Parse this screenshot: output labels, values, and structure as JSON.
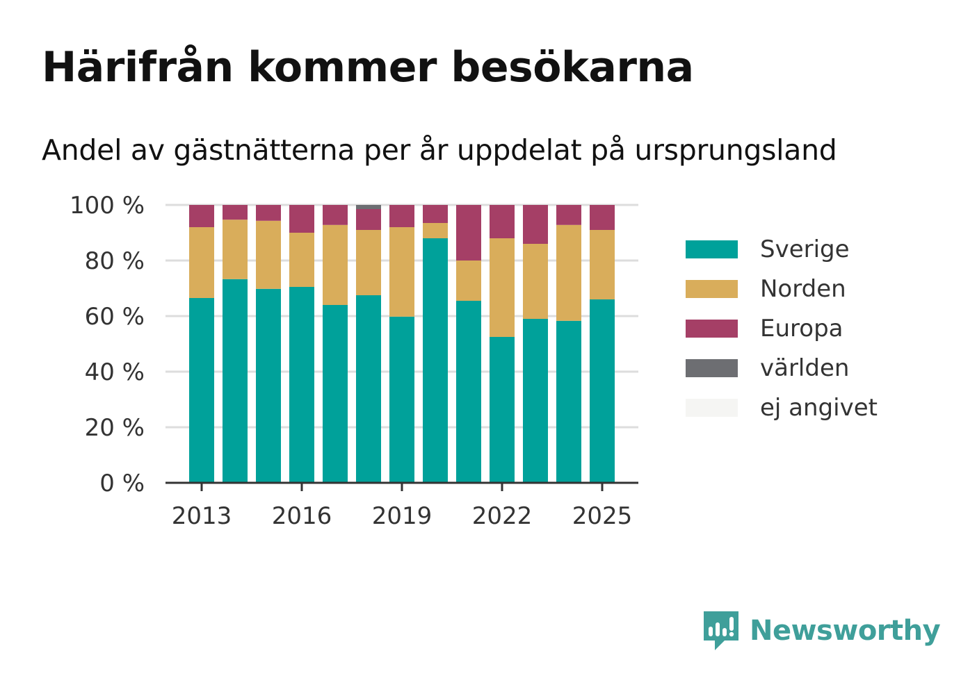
{
  "header": {
    "title": "Härifrån kommer besökarna",
    "subtitle": "Andel av gästnätterna per år uppdelat på ursprungsland"
  },
  "brand": {
    "name": "Newsworthy",
    "color": "#3f9f9a",
    "icon": "newsworthy-logo-icon"
  },
  "chart_data": {
    "type": "bar",
    "stacked": true,
    "x": [
      2013,
      2014,
      2015,
      2016,
      2017,
      2018,
      2019,
      2020,
      2021,
      2022,
      2023,
      2024,
      2025
    ],
    "x_ticks": [
      "2013",
      "2016",
      "2019",
      "2022",
      "2025"
    ],
    "y_ticks": [
      "0 %",
      "20 %",
      "40 %",
      "60 %",
      "80 %",
      "100 %"
    ],
    "ylim": [
      0,
      100
    ],
    "grid": true,
    "legend_position": "right",
    "series": [
      {
        "name": "Sverige",
        "color": "#00a19a",
        "values": [
          66.5,
          73.3,
          69.8,
          70.5,
          64.0,
          67.5,
          59.8,
          88.0,
          65.5,
          52.5,
          59.0,
          58.3,
          66.0
        ]
      },
      {
        "name": "Norden",
        "color": "#d9ad5b",
        "values": [
          25.5,
          21.4,
          24.5,
          19.5,
          28.8,
          23.5,
          32.2,
          5.5,
          14.5,
          35.5,
          27.0,
          34.5,
          25.0
        ]
      },
      {
        "name": "Europa",
        "color": "#a53f66",
        "values": [
          8.0,
          5.3,
          5.7,
          10.0,
          7.2,
          7.5,
          8.0,
          6.5,
          20.0,
          12.0,
          14.0,
          7.2,
          9.0
        ]
      },
      {
        "name": "världen",
        "color": "#6d6e72",
        "values": [
          0,
          0,
          0,
          0,
          0,
          1.5,
          0,
          0,
          0,
          0,
          0,
          0,
          0
        ]
      },
      {
        "name": "ej angivet",
        "color": "#f5f5f3",
        "values": [
          0,
          0,
          0,
          0,
          0,
          0,
          0,
          0,
          0,
          0,
          0,
          0,
          0
        ]
      }
    ]
  }
}
